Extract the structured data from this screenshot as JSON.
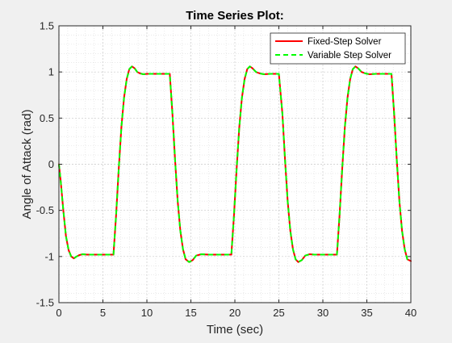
{
  "chart_data": {
    "type": "line",
    "title": "Time Series Plot:",
    "xlabel": "Time (sec)",
    "ylabel": "Angle of Attack (rad)",
    "xlim": [
      0,
      40
    ],
    "ylim": [
      -1.5,
      1.5
    ],
    "xticks": [
      0,
      5,
      10,
      15,
      20,
      25,
      30,
      35,
      40
    ],
    "xtick_labels": [
      "0",
      "5",
      "10",
      "15",
      "20",
      "25",
      "30",
      "35",
      "40"
    ],
    "yticks": [
      -1.5,
      -1,
      -0.5,
      0,
      0.5,
      1,
      1.5
    ],
    "ytick_labels": [
      "-1.5",
      "-1",
      "-0.5",
      "0",
      "0.5",
      "1",
      "1.5"
    ],
    "grid": true,
    "minor_grid": true,
    "legend_position": "top-right",
    "series": [
      {
        "name": "Fixed-Step Solver",
        "color": "#ff0000",
        "line_style": "solid",
        "x": [
          0,
          0.2,
          0.5,
          0.8,
          1.1,
          1.4,
          1.7,
          2.0,
          2.3,
          2.7,
          3.2,
          4.0,
          5.0,
          5.8,
          6.2,
          6.5,
          6.8,
          7.1,
          7.4,
          7.7,
          8.0,
          8.3,
          8.6,
          8.9,
          9.2,
          9.6,
          10.0,
          10.5,
          11.0,
          12.0,
          12.6,
          12.9,
          13.2,
          13.5,
          13.8,
          14.1,
          14.4,
          14.8,
          15.2,
          15.6,
          16.2,
          17.0,
          18.0,
          19.0,
          19.6,
          19.9,
          20.2,
          20.5,
          20.8,
          21.1,
          21.4,
          21.7,
          22.0,
          22.4,
          22.8,
          23.3,
          24.0,
          25.0,
          25.4,
          25.7,
          26.0,
          26.3,
          26.6,
          26.9,
          27.2,
          27.6,
          28.0,
          28.5,
          29.0,
          30.0,
          31.0,
          31.6,
          31.9,
          32.2,
          32.5,
          32.8,
          33.1,
          33.4,
          33.7,
          34.0,
          34.4,
          34.8,
          35.3,
          36.0,
          37.0,
          37.8,
          38.1,
          38.4,
          38.7,
          39.0,
          39.3,
          39.6,
          40.0
        ],
        "y": [
          0,
          -0.18,
          -0.5,
          -0.78,
          -0.93,
          -1.0,
          -1.02,
          -1.0,
          -0.985,
          -0.975,
          -0.98,
          -0.98,
          -0.98,
          -0.98,
          -0.98,
          -0.55,
          -0.05,
          0.4,
          0.72,
          0.92,
          1.03,
          1.06,
          1.04,
          1.0,
          0.985,
          0.975,
          0.98,
          0.98,
          0.98,
          0.98,
          0.98,
          0.55,
          0.05,
          -0.4,
          -0.72,
          -0.92,
          -1.03,
          -1.06,
          -1.04,
          -0.99,
          -0.975,
          -0.98,
          -0.98,
          -0.98,
          -0.98,
          -0.55,
          -0.05,
          0.4,
          0.72,
          0.92,
          1.03,
          1.06,
          1.04,
          1.0,
          0.985,
          0.975,
          0.98,
          0.98,
          0.55,
          0.05,
          -0.4,
          -0.72,
          -0.92,
          -1.03,
          -1.06,
          -1.04,
          -0.99,
          -0.975,
          -0.98,
          -0.98,
          -0.98,
          -0.98,
          -0.55,
          -0.05,
          0.4,
          0.72,
          0.92,
          1.03,
          1.06,
          1.04,
          1.0,
          0.985,
          0.975,
          0.98,
          0.98,
          0.98,
          0.55,
          0.05,
          -0.4,
          -0.72,
          -0.92,
          -1.03,
          -1.05
        ]
      },
      {
        "name": "Variable Step Solver",
        "color": "#00ff00",
        "line_style": "dashed",
        "x": [
          0,
          0.2,
          0.5,
          0.8,
          1.1,
          1.4,
          1.7,
          2.0,
          2.3,
          2.7,
          3.2,
          4.0,
          5.0,
          5.8,
          6.2,
          6.5,
          6.8,
          7.1,
          7.4,
          7.7,
          8.0,
          8.3,
          8.6,
          8.9,
          9.2,
          9.6,
          10.0,
          10.5,
          11.0,
          12.0,
          12.6,
          12.9,
          13.2,
          13.5,
          13.8,
          14.1,
          14.4,
          14.8,
          15.2,
          15.6,
          16.2,
          17.0,
          18.0,
          19.0,
          19.6,
          19.9,
          20.2,
          20.5,
          20.8,
          21.1,
          21.4,
          21.7,
          22.0,
          22.4,
          22.8,
          23.3,
          24.0,
          25.0,
          25.4,
          25.7,
          26.0,
          26.3,
          26.6,
          26.9,
          27.2,
          27.6,
          28.0,
          28.5,
          29.0,
          30.0,
          31.0,
          31.6,
          31.9,
          32.2,
          32.5,
          32.8,
          33.1,
          33.4,
          33.7,
          34.0,
          34.4,
          34.8,
          35.3,
          36.0,
          37.0,
          37.8,
          38.1,
          38.4,
          38.7,
          39.0,
          39.3,
          39.6,
          40.0
        ],
        "y": [
          0,
          -0.18,
          -0.5,
          -0.78,
          -0.93,
          -1.0,
          -1.02,
          -1.0,
          -0.985,
          -0.975,
          -0.98,
          -0.98,
          -0.98,
          -0.98,
          -0.98,
          -0.55,
          -0.05,
          0.4,
          0.72,
          0.92,
          1.03,
          1.06,
          1.04,
          1.0,
          0.985,
          0.975,
          0.98,
          0.98,
          0.98,
          0.98,
          0.98,
          0.55,
          0.05,
          -0.4,
          -0.72,
          -0.92,
          -1.03,
          -1.06,
          -1.04,
          -0.99,
          -0.975,
          -0.98,
          -0.98,
          -0.98,
          -0.98,
          -0.55,
          -0.05,
          0.4,
          0.72,
          0.92,
          1.03,
          1.06,
          1.04,
          1.0,
          0.985,
          0.975,
          0.98,
          0.98,
          0.55,
          0.05,
          -0.4,
          -0.72,
          -0.92,
          -1.03,
          -1.06,
          -1.04,
          -0.99,
          -0.975,
          -0.98,
          -0.98,
          -0.98,
          -0.98,
          -0.55,
          -0.05,
          0.4,
          0.72,
          0.92,
          1.03,
          1.06,
          1.04,
          1.0,
          0.985,
          0.975,
          0.98,
          0.98,
          0.98,
          0.55,
          0.05,
          -0.4,
          -0.72,
          -0.92,
          -1.03,
          -1.05
        ]
      }
    ]
  }
}
